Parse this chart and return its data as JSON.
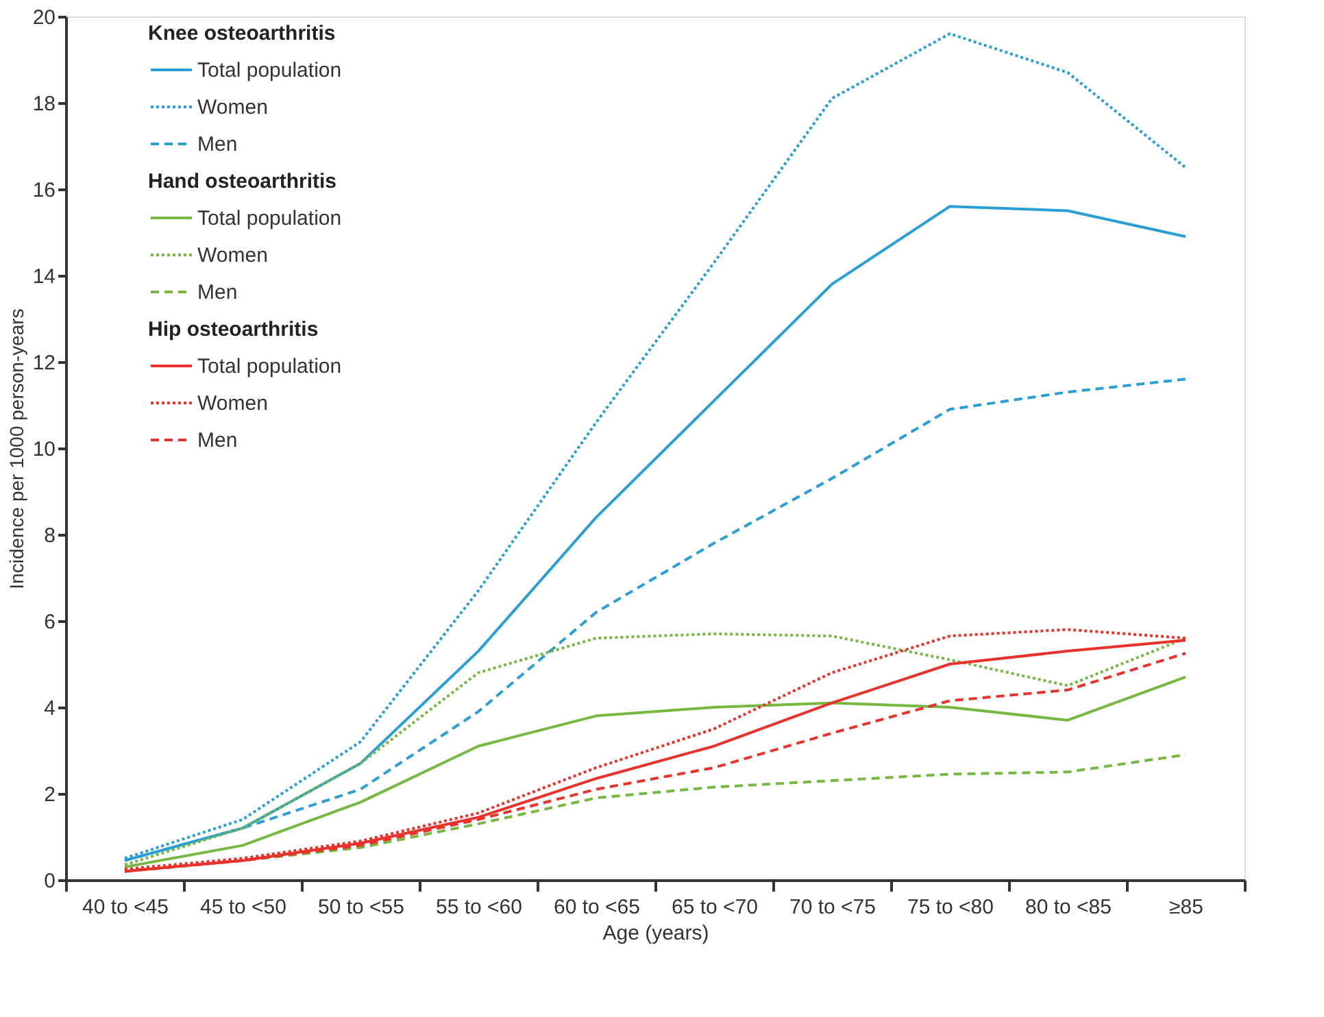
{
  "chart_data": {
    "type": "line",
    "xlabel": "Age (years)",
    "ylabel": "Incidence per 1000 person-years",
    "categories": [
      "40 to <45",
      "45 to <50",
      "50 to <55",
      "55 to <60",
      "60 to <65",
      "65 to <70",
      "70 to <75",
      "75 to <80",
      "80 to <85",
      "≥85"
    ],
    "ylim": [
      0,
      20
    ],
    "yticks": [
      0,
      2,
      4,
      6,
      8,
      10,
      12,
      14,
      16,
      18,
      20
    ],
    "grid": false,
    "legend": "top left",
    "marker": "none",
    "annotations": [
      "Knee osteoarthritis",
      "Hand osteoarthritis",
      "Hip osteoarthritis"
    ],
    "series": [
      {
        "name": "Total population",
        "color": "#2a9fd6",
        "line_style": "solid",
        "values": [
          0.45,
          1.2,
          2.7,
          5.3,
          8.4,
          11.1,
          13.8,
          15.6,
          15.5,
          14.9
        ]
      },
      {
        "name": "Women",
        "color": "#2a9fd6",
        "line_style": "dotted",
        "values": [
          0.5,
          1.4,
          3.2,
          6.7,
          10.6,
          14.3,
          18.1,
          19.6,
          18.7,
          16.5
        ]
      },
      {
        "name": "Men",
        "color": "#2a9fd6",
        "line_style": "dashed",
        "values": [
          0.45,
          1.2,
          2.1,
          3.9,
          6.2,
          7.8,
          9.3,
          10.9,
          11.3,
          11.6
        ]
      },
      {
        "name": "Total population",
        "color": "#77b843",
        "line_style": "solid",
        "values": [
          0.3,
          0.8,
          1.8,
          3.1,
          3.8,
          4.0,
          4.1,
          4.0,
          3.7,
          4.7
        ]
      },
      {
        "name": "Women",
        "color": "#77b843",
        "line_style": "dotted",
        "values": [
          0.35,
          1.2,
          2.7,
          4.8,
          5.6,
          5.7,
          5.65,
          5.1,
          4.5,
          5.6
        ]
      },
      {
        "name": "Men",
        "color": "#77b843",
        "line_style": "dashed",
        "values": [
          0.2,
          0.45,
          0.75,
          1.3,
          1.9,
          2.15,
          2.3,
          2.45,
          2.5,
          2.9
        ]
      },
      {
        "name": "Total population",
        "color": "#e8322b",
        "line_style": "solid",
        "values": [
          0.2,
          0.45,
          0.85,
          1.45,
          2.35,
          3.1,
          4.1,
          5.0,
          5.3,
          5.55
        ]
      },
      {
        "name": "Women",
        "color": "#e8322b",
        "line_style": "dotted",
        "values": [
          0.25,
          0.5,
          0.9,
          1.55,
          2.6,
          3.5,
          4.8,
          5.65,
          5.8,
          5.6
        ]
      },
      {
        "name": "Men",
        "color": "#e8322b",
        "line_style": "dashed",
        "values": [
          0.2,
          0.45,
          0.8,
          1.4,
          2.1,
          2.6,
          3.4,
          4.15,
          4.4,
          5.25
        ]
      }
    ]
  }
}
